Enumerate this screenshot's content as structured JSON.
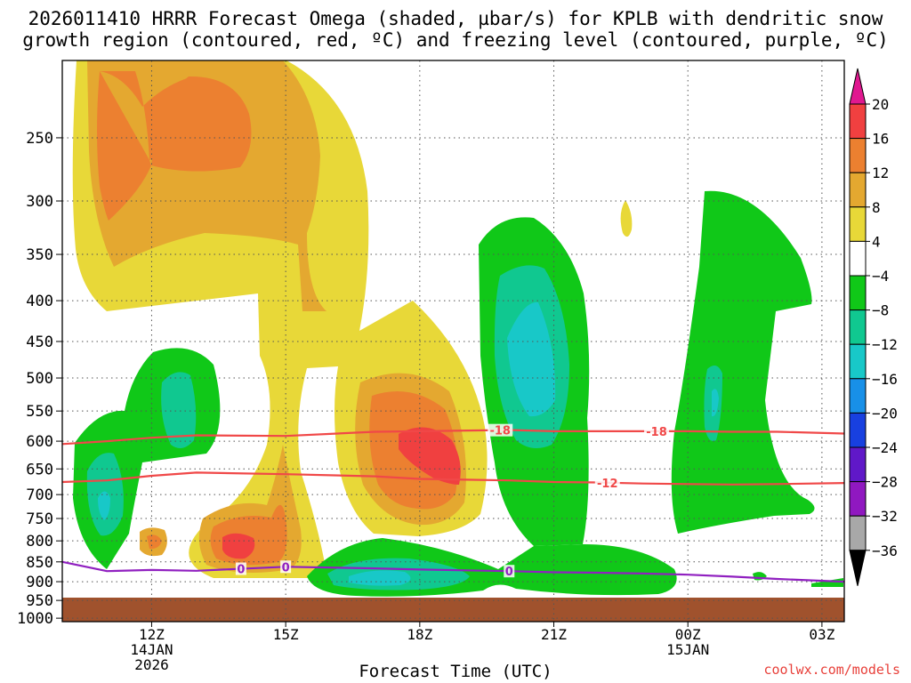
{
  "title": {
    "line1": "2026011410 HRRR Forecast Omega (shaded, µbar/s) for KPLB with dendritic snow",
    "line2": "growth region (contoured, red, ºC) and freezing level (contoured, purple, ºC)"
  },
  "credit": "coolwx.com/models",
  "chart_data": {
    "type": "heatmap",
    "title": "2026011410 HRRR Forecast Omega (shaded, µbar/s) for KPLB with dendritic snow growth region (contoured, red, ºC) and freezing level (contoured, purple, ºC)",
    "xlabel": "Forecast Time (UTC)",
    "ylabel": "",
    "x_hours_range": [
      10,
      27.5
    ],
    "ylim_hPa": [
      1010,
      200
    ],
    "y_scale": "log-pressure",
    "grid": true,
    "y_ticks": [
      "250",
      "300",
      "350",
      "400",
      "450",
      "500",
      "550",
      "600",
      "650",
      "700",
      "750",
      "800",
      "850",
      "900",
      "950",
      "1000"
    ],
    "x_ticks": [
      {
        "label": "12Z",
        "hour": 12,
        "sub": [
          "14JAN",
          "2026"
        ]
      },
      {
        "label": "15Z",
        "hour": 15,
        "sub": []
      },
      {
        "label": "18Z",
        "hour": 18,
        "sub": []
      },
      {
        "label": "21Z",
        "hour": 21,
        "sub": []
      },
      {
        "label": "00Z",
        "hour": 24,
        "sub": [
          "15JAN"
        ]
      },
      {
        "label": "03Z",
        "hour": 27,
        "sub": []
      }
    ],
    "colorbar": {
      "labels": [
        "20",
        "16",
        "12",
        "8",
        "4",
        "−4",
        "−8",
        "−12",
        "−16",
        "−20",
        "−24",
        "−28",
        "−32",
        "−36"
      ],
      "colors": [
        "#f04040",
        "#ec8030",
        "#e4a830",
        "#e8d838",
        "#ffffff",
        "#10c818",
        "#10c890",
        "#18c8c8",
        "#1890e8",
        "#1840e0",
        "#6018c8",
        "#9018c0",
        "#a8a8a8"
      ],
      "top_color": "#e01890",
      "bottom_color": "#000000"
    },
    "contours": [
      {
        "value": "-18",
        "color": "#f04848",
        "levels_hPa": [
          605,
          600,
          594,
          590,
          591,
          584,
          583,
          581,
          583,
          583,
          583,
          583,
          584,
          584,
          587
        ],
        "hours": [
          10,
          11,
          12,
          13,
          15,
          17,
          18,
          20,
          21,
          22,
          23,
          24,
          25,
          26,
          27.5
        ]
      },
      {
        "value": "-12",
        "color": "#f04848",
        "levels_hPa": [
          675,
          672,
          663,
          657,
          660,
          664,
          669,
          672,
          675,
          676,
          678,
          679,
          680,
          679,
          677
        ],
        "hours": [
          10,
          11,
          12,
          13,
          15,
          17,
          18,
          20,
          21,
          22,
          23,
          24,
          25,
          26,
          27.5
        ]
      },
      {
        "value": "0",
        "color": "#9020c0",
        "levels_hPa": [
          850,
          873,
          870,
          872,
          862,
          866,
          869,
          873,
          876,
          877,
          879,
          882,
          887,
          893,
          900
        ],
        "hours": [
          10,
          11,
          12,
          13,
          15,
          17,
          18,
          20,
          21,
          22,
          23,
          24,
          25,
          26,
          27.5
        ]
      }
    ]
  }
}
